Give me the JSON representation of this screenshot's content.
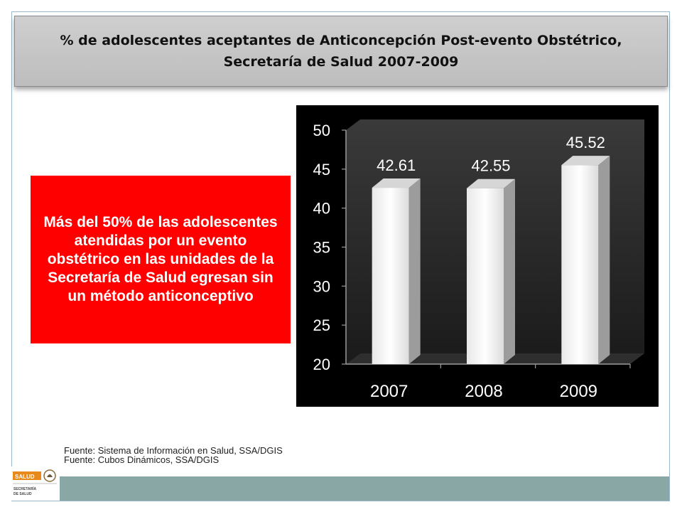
{
  "title_line1": "% de adolescentes aceptantes de Anticoncepción Post-evento Obstétrico,",
  "title_line2": "Secretaría de Salud 2007-2009",
  "callout": "Más del 50% de las adolescentes atendidas por un evento obstétrico en las unidades de la Secretaría de Salud egresan sin un método anticonceptivo",
  "source_line1": "Fuente: Sistema de Información en Salud, SSA/DGIS",
  "source_line2": "Fuente: Cubos Dinámicos, SSA/DGIS",
  "logo": {
    "word": "SALUD",
    "sub1": "SECRETARÍA",
    "sub2": "DE SALUD"
  },
  "colors": {
    "callout": "#ff0000",
    "bar": "#ffffff",
    "bottom_bar": "#89a7a5",
    "logo_orange": "#e8891c"
  },
  "chart_data": {
    "type": "bar",
    "categories": [
      "2007",
      "2008",
      "2009"
    ],
    "values": [
      42.61,
      42.55,
      45.52
    ],
    "data_labels": [
      "42.61",
      "42.55",
      "45.52"
    ],
    "yticks": [
      "20",
      "25",
      "30",
      "35",
      "40",
      "45",
      "50"
    ],
    "ylim": [
      20,
      50
    ],
    "grid": false
  }
}
